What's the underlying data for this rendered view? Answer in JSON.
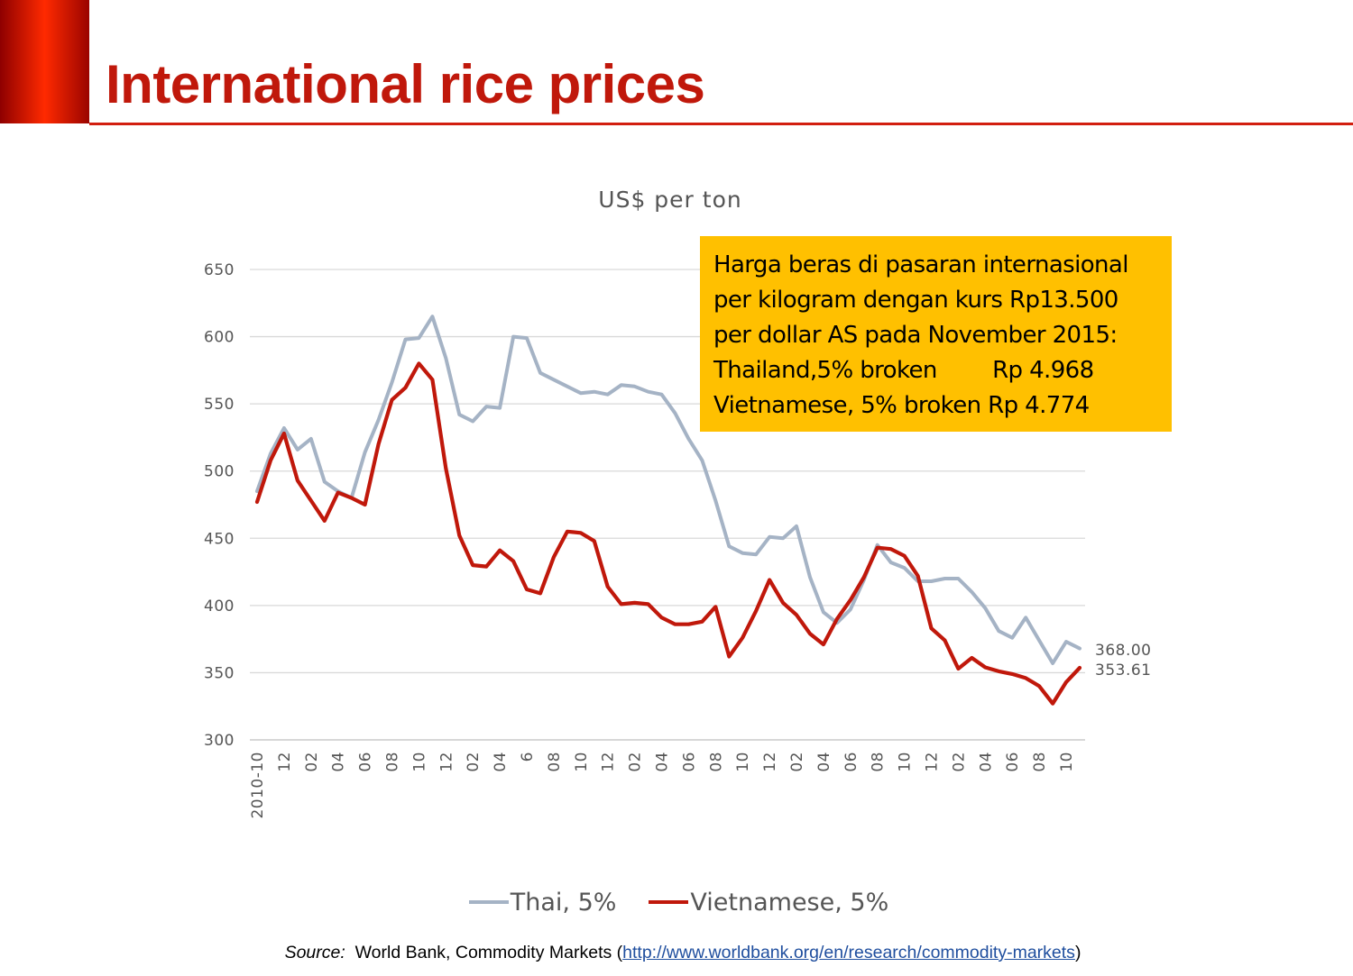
{
  "slide": {
    "title": "International rice prices"
  },
  "callout": {
    "lines": [
      "Harga beras di pasaran internasional",
      "per kilogram dengan kurs Rp13.500",
      "per dollar AS pada November 2015:",
      "Thailand,5% broken        Rp 4.968",
      "Vietnamese, 5% broken Rp 4.774"
    ],
    "background": "#ffc000"
  },
  "source": {
    "label": "Source:",
    "text_before": "  World Bank, Commodity Markets (",
    "link": "http://www.worldbank.org/en/research/commodity-markets",
    "text_after": ")"
  },
  "colors": {
    "accent": "#c0180b",
    "thai": "#a5b3c5",
    "vietnamese": "#c0180b"
  },
  "chart_data": {
    "type": "line",
    "title": "US$ per ton",
    "xlabel": "",
    "ylabel": "",
    "ylim": [
      300,
      650
    ],
    "yticks": [
      300,
      350,
      400,
      450,
      500,
      550,
      600,
      650
    ],
    "grid": true,
    "legend_position": "bottom",
    "x": [
      "2010-10",
      "11",
      "12",
      "2011-01",
      "02",
      "03",
      "04",
      "05",
      "06",
      "07",
      "08",
      "09",
      "10",
      "11",
      "12",
      "2012-01",
      "02",
      "03",
      "04",
      "05",
      "6",
      "07",
      "08",
      "09",
      "10",
      "11",
      "12",
      "2013-01",
      "02",
      "03",
      "04",
      "05",
      "06",
      "07",
      "08",
      "09",
      "10",
      "11",
      "12",
      "2014-01",
      "02",
      "03",
      "04",
      "05",
      "06",
      "07",
      "08",
      "09",
      "10",
      "11",
      "12",
      "2015-01",
      "02",
      "03",
      "04",
      "05",
      "06",
      "07",
      "08",
      "09",
      "10",
      "11"
    ],
    "x_tick_labels": [
      "2010-10",
      "",
      "12",
      "",
      "02",
      "",
      "04",
      "",
      "06",
      "",
      "08",
      "",
      "10",
      "",
      "12",
      "",
      "02",
      "",
      "04",
      "",
      "6",
      "",
      "08",
      "",
      "10",
      "",
      "12",
      "",
      "02",
      "",
      "04",
      "",
      "06",
      "",
      "08",
      "",
      "10",
      "",
      "12",
      "",
      "02",
      "",
      "04",
      "",
      "06",
      "",
      "08",
      "",
      "10",
      "",
      "12",
      "",
      "02",
      "",
      "04",
      "",
      "06",
      "",
      "08",
      "",
      "10",
      ""
    ],
    "series": [
      {
        "name": "Thai, 5%",
        "color": "#a5b3c5",
        "values": [
          485,
          513,
          532,
          516,
          524,
          492,
          485,
          480,
          514,
          538,
          566,
          598,
          599,
          615,
          584,
          542,
          537,
          548,
          547,
          600,
          599,
          573,
          568,
          563,
          558,
          559,
          557,
          564,
          563,
          559,
          557,
          543,
          524,
          508,
          478,
          444,
          439,
          438,
          451,
          450,
          459,
          421,
          395,
          387,
          397,
          419,
          445,
          432,
          428,
          418,
          418,
          420,
          420,
          410,
          398,
          381,
          376,
          391,
          374,
          357,
          373,
          368.0
        ],
        "end_label": "368.00"
      },
      {
        "name": "Vietnamese, 5%",
        "color": "#c0180b",
        "values": [
          477,
          508,
          528,
          493,
          478,
          463,
          484,
          480,
          475,
          520,
          553,
          562,
          580,
          568,
          502,
          452,
          430,
          429,
          441,
          433,
          412,
          409,
          436,
          455,
          454,
          448,
          414,
          401,
          402,
          401,
          391,
          386,
          386,
          388,
          399,
          362,
          376,
          396,
          419,
          402,
          393,
          379,
          371,
          390,
          404,
          421,
          443,
          442,
          437,
          422,
          383,
          374,
          353,
          361,
          354,
          351,
          349,
          346,
          340,
          327,
          343,
          353.61
        ],
        "end_label": "353.61"
      }
    ]
  }
}
